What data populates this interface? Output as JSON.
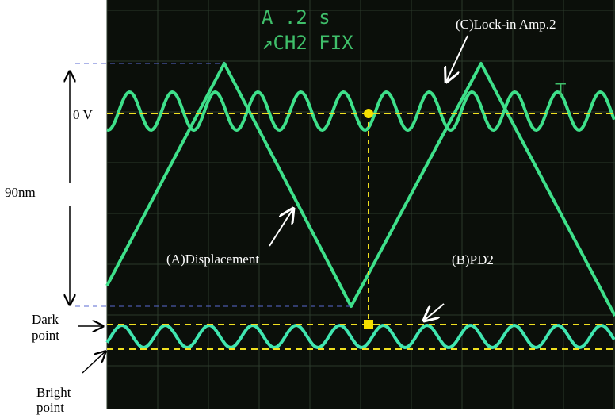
{
  "screen": {
    "timebase": "A .2 s",
    "channel": "↗CH2 FIX",
    "trigger": "T"
  },
  "labels": {
    "lock_in": "(C)Lock-in Amp.2",
    "zero_v": "0 V",
    "range": "90nm",
    "displacement": "(A)Displacement",
    "pd2": "(B)PD2",
    "dark_point": [
      "Dark",
      "point"
    ],
    "bright_point": [
      "Bright",
      "point"
    ]
  }
}
